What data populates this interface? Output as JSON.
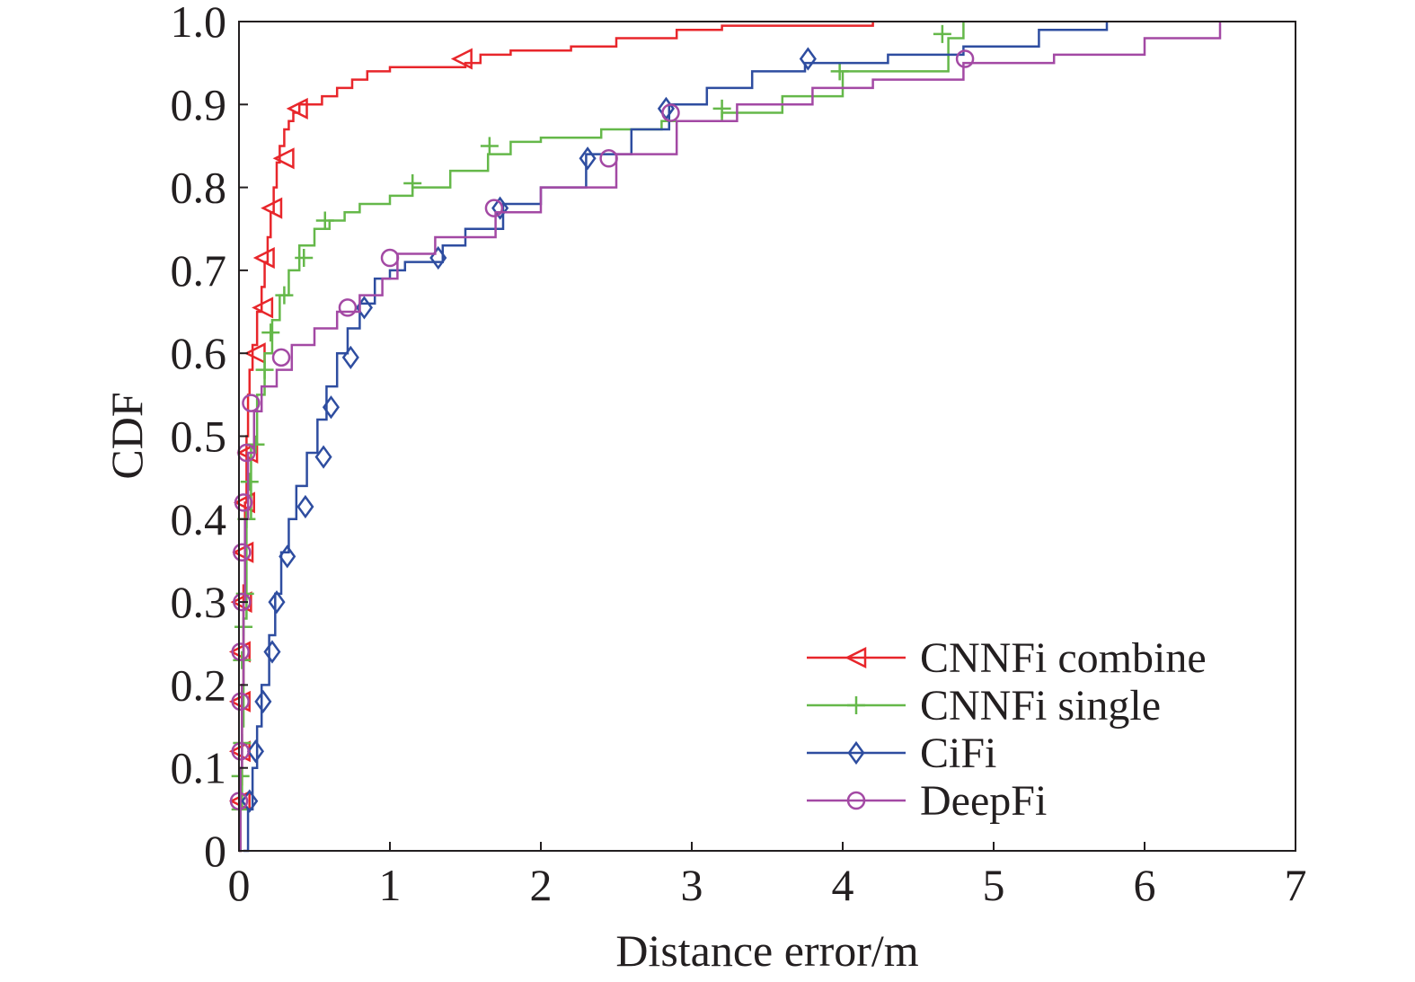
{
  "chart_data": {
    "type": "line",
    "xlabel": "Distance error/m",
    "ylabel": "CDF",
    "xlim": [
      0,
      7
    ],
    "ylim": [
      0,
      1.0
    ],
    "xticks": [
      "0",
      "1",
      "2",
      "3",
      "4",
      "5",
      "6",
      "7"
    ],
    "yticks": [
      "0",
      "0.1",
      "0.2",
      "0.3",
      "0.4",
      "0.5",
      "0.6",
      "0.7",
      "0.8",
      "0.9",
      "1.0"
    ],
    "grid": false,
    "legend_position": "bottom-right",
    "series": [
      {
        "name": "CNNFi combine",
        "color": "#e8262b",
        "marker": "triangle-left",
        "x": [
          0.0,
          0.01,
          0.02,
          0.03,
          0.04,
          0.05,
          0.06,
          0.07,
          0.09,
          0.12,
          0.15,
          0.17,
          0.19,
          0.21,
          0.23,
          0.25,
          0.27,
          0.3,
          0.33,
          0.36,
          0.4,
          0.45,
          0.55,
          0.65,
          0.75,
          0.85,
          1.0,
          1.2,
          1.5,
          1.6,
          1.8,
          2.2,
          2.5,
          2.9,
          3.2,
          4.2
        ],
        "y": [
          0.0,
          0.08,
          0.2,
          0.32,
          0.42,
          0.5,
          0.55,
          0.58,
          0.61,
          0.65,
          0.68,
          0.71,
          0.74,
          0.77,
          0.8,
          0.83,
          0.85,
          0.87,
          0.88,
          0.89,
          0.9,
          0.9,
          0.91,
          0.92,
          0.93,
          0.94,
          0.945,
          0.945,
          0.95,
          0.96,
          0.965,
          0.97,
          0.98,
          0.99,
          0.995,
          1.0
        ],
        "marker_x": [
          0.01,
          0.01,
          0.01,
          0.01,
          0.02,
          0.03,
          0.04,
          0.06,
          0.11,
          0.16,
          0.17,
          0.22,
          0.3,
          0.39,
          1.48
        ],
        "marker_y": [
          0.06,
          0.12,
          0.18,
          0.24,
          0.3,
          0.36,
          0.42,
          0.48,
          0.6,
          0.655,
          0.715,
          0.775,
          0.835,
          0.895,
          0.955
        ]
      },
      {
        "name": "CNNFi single",
        "color": "#65b84a",
        "marker": "plus",
        "x": [
          0.0,
          0.01,
          0.02,
          0.03,
          0.05,
          0.08,
          0.12,
          0.17,
          0.22,
          0.27,
          0.33,
          0.4,
          0.5,
          0.6,
          0.7,
          0.8,
          1.0,
          1.15,
          1.4,
          1.65,
          1.8,
          2.0,
          2.4,
          2.8,
          3.2,
          3.6,
          4.0,
          4.7,
          4.8
        ],
        "y": [
          0.0,
          0.05,
          0.15,
          0.28,
          0.4,
          0.49,
          0.55,
          0.6,
          0.64,
          0.67,
          0.7,
          0.73,
          0.75,
          0.76,
          0.77,
          0.78,
          0.79,
          0.8,
          0.82,
          0.84,
          0.855,
          0.86,
          0.87,
          0.88,
          0.89,
          0.91,
          0.94,
          0.98,
          1.0
        ],
        "marker_x": [
          0.01,
          0.01,
          0.02,
          0.02,
          0.03,
          0.04,
          0.05,
          0.07,
          0.11,
          0.17,
          0.21,
          0.3,
          0.43,
          0.57,
          1.15,
          1.66,
          3.2,
          3.98,
          4.66
        ],
        "marker_y": [
          0.05,
          0.09,
          0.13,
          0.23,
          0.27,
          0.31,
          0.4,
          0.445,
          0.49,
          0.58,
          0.625,
          0.67,
          0.715,
          0.76,
          0.805,
          0.85,
          0.895,
          0.94,
          0.985
        ]
      },
      {
        "name": "CiFi",
        "color": "#2e4da0",
        "marker": "diamond",
        "x": [
          0.03,
          0.06,
          0.09,
          0.12,
          0.15,
          0.2,
          0.24,
          0.28,
          0.33,
          0.38,
          0.45,
          0.52,
          0.58,
          0.65,
          0.72,
          0.8,
          0.9,
          1.0,
          1.1,
          1.35,
          1.5,
          1.75,
          2.0,
          2.3,
          2.6,
          2.85,
          3.1,
          3.4,
          3.75,
          4.3,
          4.8,
          5.3,
          5.75
        ],
        "y": [
          0.0,
          0.05,
          0.1,
          0.15,
          0.2,
          0.26,
          0.31,
          0.36,
          0.4,
          0.44,
          0.48,
          0.52,
          0.56,
          0.6,
          0.63,
          0.66,
          0.69,
          0.7,
          0.71,
          0.73,
          0.75,
          0.78,
          0.8,
          0.84,
          0.87,
          0.9,
          0.92,
          0.94,
          0.95,
          0.96,
          0.97,
          0.99,
          1.0
        ],
        "marker_x": [
          0.07,
          0.11,
          0.16,
          0.22,
          0.25,
          0.32,
          0.44,
          0.56,
          0.61,
          0.74,
          0.83,
          1.32,
          1.73,
          2.31,
          2.83,
          3.77
        ],
        "marker_y": [
          0.06,
          0.12,
          0.18,
          0.24,
          0.3,
          0.355,
          0.415,
          0.475,
          0.535,
          0.595,
          0.655,
          0.715,
          0.775,
          0.835,
          0.895,
          0.955
        ]
      },
      {
        "name": "DeepFi",
        "color": "#a349a4",
        "marker": "circle",
        "x": [
          0.0,
          0.01,
          0.02,
          0.03,
          0.04,
          0.06,
          0.1,
          0.15,
          0.25,
          0.35,
          0.5,
          0.65,
          0.8,
          0.95,
          1.05,
          1.3,
          1.7,
          2.0,
          2.5,
          2.9,
          3.3,
          3.8,
          4.2,
          4.8,
          5.4,
          6.0,
          6.5
        ],
        "y": [
          0.0,
          0.1,
          0.2,
          0.3,
          0.4,
          0.48,
          0.53,
          0.56,
          0.58,
          0.61,
          0.63,
          0.65,
          0.67,
          0.69,
          0.72,
          0.74,
          0.77,
          0.8,
          0.84,
          0.88,
          0.9,
          0.92,
          0.93,
          0.95,
          0.96,
          0.98,
          1.0
        ],
        "marker_x": [
          0.0,
          0.01,
          0.01,
          0.01,
          0.02,
          0.02,
          0.03,
          0.05,
          0.08,
          0.28,
          0.72,
          1.0,
          1.69,
          2.45,
          2.86,
          4.81
        ],
        "marker_y": [
          0.06,
          0.12,
          0.18,
          0.24,
          0.3,
          0.36,
          0.42,
          0.48,
          0.54,
          0.595,
          0.655,
          0.715,
          0.775,
          0.835,
          0.89,
          0.955
        ]
      }
    ]
  }
}
